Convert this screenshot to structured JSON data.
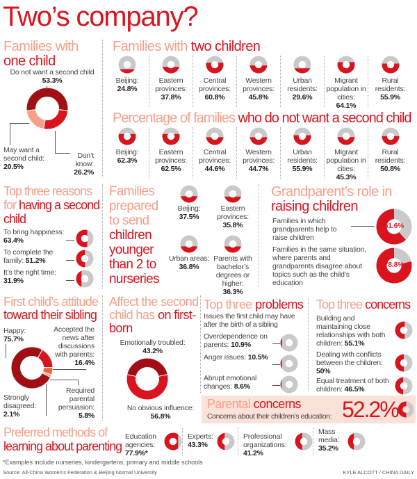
{
  "title": "Two’s company?",
  "one_child": {
    "heading_a": "Families with",
    "heading_b": "one child",
    "top_label": "Do not want a second child",
    "top_value": "53.3%",
    "left_label": "May want a second child:",
    "left_value": "20.5%",
    "right_label": "Don’t know:",
    "right_value": "26.2%"
  },
  "two_children": {
    "heading_a": "Families with ",
    "heading_b": "two children",
    "items": [
      {
        "label": "Beijing:",
        "value": "24.8%"
      },
      {
        "label": "Eastern provinces:",
        "value": "37.8%"
      },
      {
        "label": "Central provinces:",
        "value": "60.8%"
      },
      {
        "label": "Western provinces:",
        "value": "45.8%"
      },
      {
        "label": "Urban residents:",
        "value": "29.6%"
      },
      {
        "label": "Migrant population in cities:",
        "value": "64.1%"
      },
      {
        "label": "Rural residents:",
        "value": "55.9%"
      }
    ]
  },
  "no_second": {
    "heading_a": "Percentage of families ",
    "heading_b": "who do not want a second child",
    "items": [
      {
        "label": "Beijing:",
        "value": "62.3%"
      },
      {
        "label": "Eastern provinces:",
        "value": "62.5%"
      },
      {
        "label": "Central provinces:",
        "value": "44.6%"
      },
      {
        "label": "Western provinces:",
        "value": "44.7%"
      },
      {
        "label": "Urban residents:",
        "value": "55.9%"
      },
      {
        "label": "Migrant population in cities:",
        "value": "45.3%"
      },
      {
        "label": "Rural residents:",
        "value": "50.8%"
      }
    ]
  },
  "reasons": {
    "heading_a": "Top three reasons for ",
    "heading_b": "having a second child",
    "items": [
      {
        "label": "To bring happiness:",
        "value": "63.4%"
      },
      {
        "label": "To complete the family:",
        "value": "51.2%"
      },
      {
        "label": "It’s the right time:",
        "value": "31.9%"
      }
    ]
  },
  "nurseries": {
    "heading_a": "Families prepared to send",
    "heading_b": "children younger than 2 to nurseries",
    "items": [
      {
        "label": "Beijing:",
        "value": "37.5%"
      },
      {
        "label": "Eastern provinces:",
        "value": "35.8%"
      },
      {
        "label": "Urban areas:",
        "value": "36.8%"
      },
      {
        "label": "Parents with bachelor’s degrees or higher:",
        "value": "36.3%"
      }
    ]
  },
  "grandparents": {
    "heading_a": "Grandparent’s role in",
    "heading_b": "raising children",
    "items": [
      {
        "label": "Families in which grandparents help to raise children",
        "value": "61.6%"
      },
      {
        "label": "Families in the same situation, where parents and grandparents disagree about topics such as the child’s education",
        "value": "78.8%"
      }
    ]
  },
  "sibling": {
    "heading_a": "First child’s attitude",
    "heading_b": "toward their sibling",
    "happy_label": "Happy:",
    "happy_value": "75.7%",
    "accepted_label": "Accepted the news after discussions with parents:",
    "accepted_value": "16.4%",
    "persuasion_label": "Required parental persuasion:",
    "persuasion_value": "5.8%",
    "disagreed_label": "Strongly disagreed:",
    "disagreed_value": "2.1%"
  },
  "first_born": {
    "heading_a": "Affect the second child has",
    "heading_b": "on first-born",
    "top_label": "Emotionally troubled:",
    "top_value": "43.2%",
    "bottom_label": "No obvious influence:",
    "bottom_value": "56.8%"
  },
  "problems": {
    "heading_a": "Top three ",
    "heading_b": "problems",
    "subtitle": "Issues the first child may have after the birth of a sibling",
    "items": [
      {
        "label": "Overdependence on parents:",
        "value": "10.9%"
      },
      {
        "label": "Anger issues:",
        "value": "10.5%"
      },
      {
        "label": "Abrupt emotional changes:",
        "value": "8.6%"
      }
    ]
  },
  "concerns": {
    "heading_a": "Top three ",
    "heading_b": "concerns",
    "items": [
      {
        "label": "Building and maintaining close relationships with both children:",
        "value": "55.1%"
      },
      {
        "label": "Dealing with conflicts between the children:",
        "value": "50%"
      },
      {
        "label": "Equal treatment of both children:",
        "value": "46.5%"
      }
    ]
  },
  "parental": {
    "heading_a": "Parental ",
    "heading_b": "concerns",
    "label": "Concerns about their children’s education:",
    "value": "52.2%"
  },
  "methods": {
    "heading_a": "Preferred methods of",
    "heading_b": "learning about parenting",
    "items": [
      {
        "label": "Education agencies:",
        "value": "77.9%*"
      },
      {
        "label": "Experts:",
        "value": "43.3%"
      },
      {
        "label": "Professional organizations:",
        "value": "41.2%"
      },
      {
        "label": "Mass media:",
        "value": "35.2%"
      }
    ]
  },
  "footnote": "*Examples include nurseries, kindergartens, primary and middle schools",
  "source": "Source: All-China Women’s Federation & Beijing Normal University",
  "credit": "KYLE ALCOTT / CHINA DAILY",
  "colors": {
    "accent": "#d9141e",
    "dark": "#a10f14",
    "light": "#f4a08a",
    "orange": "#e8674a",
    "empty": "#c9c9c9",
    "panel": "#fbe2d8"
  },
  "chart_data": [
    {
      "type": "pie",
      "title": "Families with one child",
      "categories": [
        "Do not want a second child",
        "Don’t know",
        "May want a second child"
      ],
      "values": [
        53.3,
        26.2,
        20.5
      ],
      "colors": [
        "#a10f14",
        "#d9141e",
        "#f4a08a"
      ]
    },
    {
      "type": "pie",
      "title": "Families with two children",
      "categories": [
        "Beijing",
        "Eastern provinces",
        "Central provinces",
        "Western provinces",
        "Urban residents",
        "Migrant population in cities",
        "Rural residents"
      ],
      "values": [
        24.8,
        37.8,
        60.8,
        45.8,
        29.6,
        64.1,
        55.9
      ]
    },
    {
      "type": "pie",
      "title": "Percentage of families who do not want a second child",
      "categories": [
        "Beijing",
        "Eastern provinces",
        "Central provinces",
        "Western provinces",
        "Urban residents",
        "Migrant population in cities",
        "Rural residents"
      ],
      "values": [
        62.3,
        62.5,
        44.6,
        44.7,
        55.9,
        45.3,
        50.8
      ]
    },
    {
      "type": "pie",
      "title": "Top three reasons for having a second child",
      "categories": [
        "To bring happiness",
        "To complete the family",
        "It’s the right time"
      ],
      "values": [
        63.4,
        51.2,
        31.9
      ]
    },
    {
      "type": "pie",
      "title": "Families prepared to send children younger than 2 to nurseries",
      "categories": [
        "Beijing",
        "Eastern provinces",
        "Urban areas",
        "Parents with bachelor’s degrees or higher"
      ],
      "values": [
        37.5,
        35.8,
        36.8,
        36.3
      ]
    },
    {
      "type": "pie",
      "title": "Grandparent’s role in raising children",
      "categories": [
        "Families in which grandparents help to raise children",
        "Families in the same situation, where parents and grandparents disagree"
      ],
      "values": [
        61.6,
        78.8
      ]
    },
    {
      "type": "pie",
      "title": "First child’s attitude toward their sibling",
      "categories": [
        "Accepted the news after discussions with parents",
        "Required parental persuasion",
        "Strongly disagreed",
        "Happy"
      ],
      "values": [
        16.4,
        5.8,
        2.1,
        75.7
      ],
      "colors": [
        "#d9141e",
        "#e8674a",
        "#f4a08a",
        "#a10f14"
      ]
    },
    {
      "type": "pie",
      "title": "Affect the second child has on first-born",
      "categories": [
        "Emotionally troubled",
        "No obvious influence"
      ],
      "values": [
        43.2,
        56.8
      ],
      "colors": [
        "#a10f14",
        "#d9141e"
      ]
    },
    {
      "type": "pie",
      "title": "Top three problems",
      "categories": [
        "Overdependence on parents",
        "Anger issues",
        "Abrupt emotional changes"
      ],
      "values": [
        10.9,
        10.5,
        8.6
      ]
    },
    {
      "type": "pie",
      "title": "Top three concerns",
      "categories": [
        "Building and maintaining close relationships with both children",
        "Dealing with conflicts between the children",
        "Equal treatment of both children"
      ],
      "values": [
        55.1,
        50,
        46.5
      ]
    },
    {
      "type": "pie",
      "title": "Parental concerns",
      "categories": [
        "Concerns about their children’s education"
      ],
      "values": [
        52.2
      ]
    },
    {
      "type": "pie",
      "title": "Preferred methods of learning about parenting",
      "categories": [
        "Education agencies",
        "Experts",
        "Professional organizations",
        "Mass media"
      ],
      "values": [
        77.9,
        43.3,
        41.2,
        35.2
      ]
    }
  ]
}
